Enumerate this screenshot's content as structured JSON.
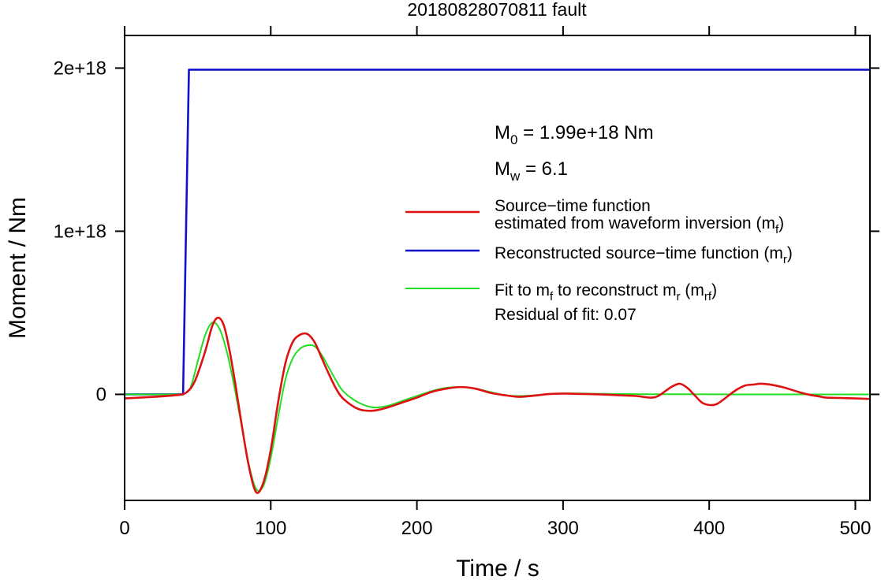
{
  "chart_data": {
    "type": "line",
    "title": "20180828070811 fault",
    "xlabel": "Time / s",
    "ylabel": "Moment / Nm",
    "xlim": [
      0,
      510
    ],
    "ylim": [
      -6.5e+17,
      2.2e+18
    ],
    "x_ticks": [
      0,
      100,
      200,
      300,
      400,
      500
    ],
    "x_tick_labels": [
      "0",
      "100",
      "200",
      "300",
      "400",
      "500"
    ],
    "y_ticks": [
      0,
      1e+18,
      2e+18
    ],
    "y_tick_labels": [
      "0",
      "1e+18",
      "2e+18"
    ],
    "grid": false,
    "legend_placement": "right",
    "annotations": {
      "m0": {
        "prefix": "M",
        "sub": "0",
        "text": " = 1.99e+18 Nm"
      },
      "mw": {
        "prefix": "M",
        "sub": "w",
        "text": " = 6.1"
      },
      "residual": "Residual of fit: 0.07"
    },
    "legend": [
      {
        "color": "#dd1111",
        "lines": [
          [
            {
              "t": "Source−time function"
            }
          ],
          [
            {
              "t": "estimated from waveform inversion (m"
            },
            {
              "t": "f",
              "sub": true
            },
            {
              "t": ")"
            }
          ]
        ]
      },
      {
        "color": "#1111cc",
        "lines": [
          [
            {
              "t": "Reconstructed source−time function (m"
            },
            {
              "t": "r",
              "sub": true
            },
            {
              "t": ")"
            }
          ]
        ]
      },
      {
        "color": "#22dd22",
        "lines": [
          [
            {
              "t": "Fit to m"
            },
            {
              "t": "f",
              "sub": true
            },
            {
              "t": " to reconstruct m"
            },
            {
              "t": "r",
              "sub": true
            },
            {
              "t": " (m"
            },
            {
              "t": "rf",
              "sub": true
            },
            {
              "t": ")"
            }
          ]
        ]
      }
    ],
    "series": [
      {
        "name": "Source−time function estimated from waveform inversion (m_f)",
        "color": "#dd1111",
        "x": [
          0,
          20,
          35,
          42,
          48,
          55,
          60,
          64,
          68,
          72,
          76,
          80,
          85,
          90,
          95,
          100,
          105,
          110,
          115,
          120,
          125,
          130,
          135,
          140,
          145,
          150,
          160,
          170,
          180,
          190,
          200,
          210,
          220,
          230,
          240,
          250,
          260,
          270,
          280,
          290,
          300,
          310,
          320,
          330,
          340,
          350,
          360,
          365,
          370,
          375,
          380,
          385,
          390,
          395,
          400,
          405,
          410,
          415,
          420,
          425,
          430,
          435,
          440,
          445,
          450,
          455,
          460,
          465,
          470,
          475,
          480,
          490,
          500,
          510
        ],
        "y": [
          -2.5e+16,
          -1.5e+16,
          -5000000000000000.0,
          1e+16,
          8e+16,
          2.6e+17,
          4.2e+17,
          4.7e+17,
          4.2e+17,
          2.6e+17,
          5e+16,
          -1.8e+17,
          -4.4e+17,
          -6e+17,
          -5.4e+17,
          -3.4e+17,
          -5e+16,
          1.9e+17,
          3.2e+17,
          3.65e+17,
          3.7e+17,
          3.2e+17,
          2.2e+17,
          1.2e+17,
          3e+16,
          -3e+16,
          -9e+16,
          -1e+17,
          -8e+16,
          -5e+16,
          -2e+16,
          1.5e+16,
          3.5e+16,
          4.5e+16,
          3.5e+16,
          1e+16,
          -5000000000000000.0,
          -1.5e+16,
          -8000000000000000.0,
          2000000000000000.0,
          5000000000000000.0,
          3000000000000000.0,
          1000000000000000.0,
          -2000000000000000.0,
          -6000000000000000.0,
          -1e+16,
          -2e+16,
          -1e+16,
          2e+16,
          5e+16,
          6.5e+16,
          4e+16,
          -5000000000000000.0,
          -5e+16,
          -6.5e+16,
          -6e+16,
          -3e+16,
          5000000000000000.0,
          3.5e+16,
          5.5e+16,
          6e+16,
          6.5e+16,
          6.2e+16,
          5.5e+16,
          4.5e+16,
          3.2e+16,
          1.8e+16,
          5000000000000000.0,
          -5000000000000000.0,
          -1.2e+16,
          -2e+16,
          -2.2e+16,
          -2.5e+16,
          -2.8e+16
        ]
      },
      {
        "name": "Reconstructed source−time function (m_r)",
        "color": "#1111cc",
        "x": [
          0,
          40,
          44,
          510
        ],
        "y": [
          0,
          0,
          1.99e+18,
          1.99e+18
        ]
      },
      {
        "name": "Fit to m_f to reconstruct m_r (m_rf)",
        "color": "#22dd22",
        "x": [
          0,
          20,
          35,
          40,
          45,
          50,
          55,
          60,
          65,
          70,
          75,
          80,
          85,
          90,
          95,
          100,
          105,
          110,
          115,
          120,
          125,
          130,
          135,
          140,
          145,
          150,
          160,
          170,
          180,
          190,
          200,
          210,
          220,
          230,
          240,
          250,
          260,
          270,
          280,
          290,
          300,
          310,
          320,
          340,
          360,
          380,
          400,
          420,
          440,
          460,
          480,
          500,
          510
        ],
        "y": [
          0,
          0,
          0,
          2000000000000000.0,
          4e+16,
          2e+17,
          3.6e+17,
          4.4e+17,
          4e+17,
          2.6e+17,
          5e+16,
          -1.9e+17,
          -4.3e+17,
          -5.8e+17,
          -5.6e+17,
          -3.9e+17,
          -1.4e+17,
          9e+16,
          2.2e+17,
          2.8e+17,
          3e+17,
          2.95e+17,
          2.4e+17,
          1.6e+17,
          8e+16,
          1.5e+16,
          -5e+16,
          -8e+16,
          -7e+16,
          -4e+16,
          -1e+16,
          2e+16,
          4e+16,
          4.5e+16,
          3.5e+16,
          1.5e+16,
          -5000000000000000.0,
          -1e+16,
          -6000000000000000.0,
          2000000000000000.0,
          6000000000000000.0,
          6000000000000000.0,
          4000000000000000.0,
          2000000000000000.0,
          1000000000000000.0,
          1000000000000000.0,
          500000000000000.0,
          0,
          0,
          0,
          0,
          0,
          0
        ]
      }
    ]
  }
}
